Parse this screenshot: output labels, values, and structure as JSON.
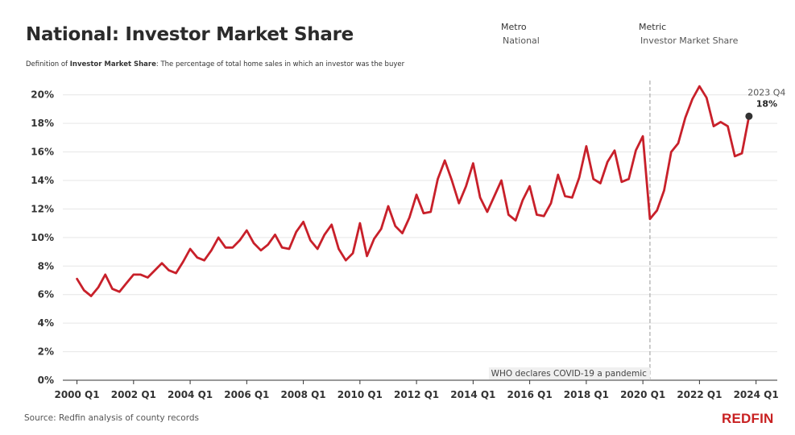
{
  "header": {
    "title": "National: Investor Market Share",
    "filters": [
      {
        "label": "Metro",
        "value": "National"
      },
      {
        "label": "Metric",
        "value": "Investor Market Share"
      }
    ],
    "definition_prefix": "Definition of",
    "definition_term": "Investor Market Share",
    "definition_text": ": The percentage of total home sales in which an investor was the buyer"
  },
  "footer": {
    "source": "Source: Redfin analysis of county records",
    "logo": "REDFIN"
  },
  "colors": {
    "line": "#c8202a",
    "grid": "#e6e6e6",
    "annotation_line": "#aaaaaa",
    "annotation_box": "#f0f0f0",
    "last_point": "#333333",
    "logo": "#c82021"
  },
  "chart_data": {
    "type": "line",
    "x_tick_labels": [
      "2000 Q1",
      "2002 Q1",
      "2004 Q1",
      "2006 Q1",
      "2008 Q1",
      "2010 Q1",
      "2012 Q1",
      "2014 Q1",
      "2016 Q1",
      "2018 Q1",
      "2020 Q1",
      "2022 Q1",
      "2024 Q1"
    ],
    "y_tick_labels": [
      "0%",
      "2%",
      "4%",
      "6%",
      "8%",
      "10%",
      "12%",
      "14%",
      "16%",
      "18%",
      "20%"
    ],
    "ylim": [
      0,
      21
    ],
    "xlim": [
      1999.5,
      2024.75
    ],
    "grid": true,
    "series": [
      {
        "x": [
          2000.0,
          2000.25,
          2000.5,
          2000.75,
          2001.0,
          2001.25,
          2001.5,
          2001.75,
          2002.0,
          2002.25,
          2002.5,
          2002.75,
          2003.0,
          2003.25,
          2003.5,
          2003.75,
          2004.0,
          2004.25,
          2004.5,
          2004.75,
          2005.0,
          2005.25,
          2005.5,
          2005.75,
          2006.0,
          2006.25,
          2006.5,
          2006.75,
          2007.0,
          2007.25,
          2007.5,
          2007.75,
          2008.0,
          2008.25,
          2008.5,
          2008.75,
          2009.0,
          2009.25,
          2009.5,
          2009.75,
          2010.0,
          2010.25,
          2010.5,
          2010.75,
          2011.0,
          2011.25,
          2011.5,
          2011.75,
          2012.0,
          2012.25,
          2012.5,
          2012.75,
          2013.0,
          2013.25,
          2013.5,
          2013.75,
          2014.0,
          2014.25,
          2014.5,
          2014.75,
          2015.0,
          2015.25,
          2015.5,
          2015.75,
          2016.0,
          2016.25,
          2016.5,
          2016.75,
          2017.0,
          2017.25,
          2017.5,
          2017.75,
          2018.0,
          2018.25,
          2018.5,
          2018.75,
          2019.0,
          2019.25,
          2019.5,
          2019.75,
          2020.0,
          2020.25,
          2020.5,
          2020.75,
          2021.0,
          2021.25,
          2021.5,
          2021.75,
          2022.0,
          2022.25,
          2022.5,
          2022.75,
          2023.0,
          2023.25,
          2023.5,
          2023.75
        ],
        "y": [
          7.1,
          6.3,
          5.9,
          6.5,
          7.4,
          6.4,
          6.2,
          6.8,
          7.4,
          7.4,
          7.2,
          7.7,
          8.2,
          7.7,
          7.5,
          8.3,
          9.2,
          8.6,
          8.4,
          9.1,
          10.0,
          9.3,
          9.3,
          9.8,
          10.5,
          9.6,
          9.1,
          9.5,
          10.2,
          9.3,
          9.2,
          10.4,
          11.1,
          9.8,
          9.2,
          10.2,
          10.9,
          9.2,
          8.4,
          8.9,
          11.0,
          8.7,
          9.9,
          10.6,
          12.2,
          10.8,
          10.3,
          11.4,
          13.0,
          11.7,
          11.8,
          14.1,
          15.4,
          14.0,
          12.4,
          13.6,
          15.2,
          12.8,
          11.8,
          12.9,
          14.0,
          11.6,
          11.2,
          12.6,
          13.6,
          11.6,
          11.5,
          12.4,
          14.4,
          12.9,
          12.8,
          14.2,
          16.4,
          14.1,
          13.8,
          15.3,
          16.1,
          13.9,
          14.1,
          16.1,
          17.1,
          11.3,
          11.9,
          13.3,
          16.0,
          16.6,
          18.4,
          19.7,
          20.6,
          19.8,
          17.8,
          18.1,
          17.8,
          15.7,
          15.9,
          18.5
        ]
      }
    ],
    "annotations": [
      {
        "x": 2020.25,
        "text": "WHO declares COVID-19 a pandemic"
      },
      {
        "x": 2023.75,
        "label": "2023 Q4",
        "value": "18%"
      }
    ]
  }
}
